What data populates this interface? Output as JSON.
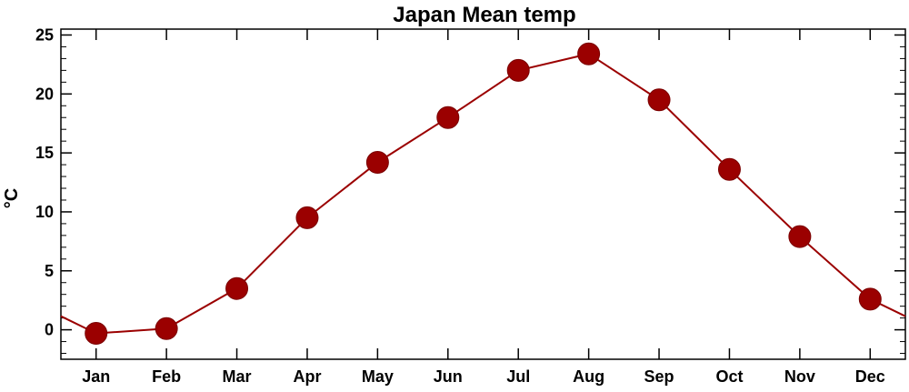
{
  "chart_data": {
    "type": "line",
    "title": "Japan Mean temp",
    "xlabel": "",
    "ylabel": "°C",
    "categories": [
      "Jan",
      "Feb",
      "Mar",
      "Apr",
      "May",
      "Jun",
      "Jul",
      "Aug",
      "Sep",
      "Oct",
      "Nov",
      "Dec"
    ],
    "series": [
      {
        "values": [
          -0.3,
          0.1,
          3.5,
          9.5,
          14.2,
          18.0,
          22.0,
          23.4,
          19.5,
          13.6,
          7.9,
          2.6
        ],
        "color": "#9b0000"
      }
    ],
    "ylim": [
      -2.5,
      25.5
    ],
    "yticks": [
      0,
      5,
      10,
      15,
      20,
      25
    ],
    "grid": false,
    "legend": "none",
    "periodic": true,
    "markers": "filled-circle"
  }
}
